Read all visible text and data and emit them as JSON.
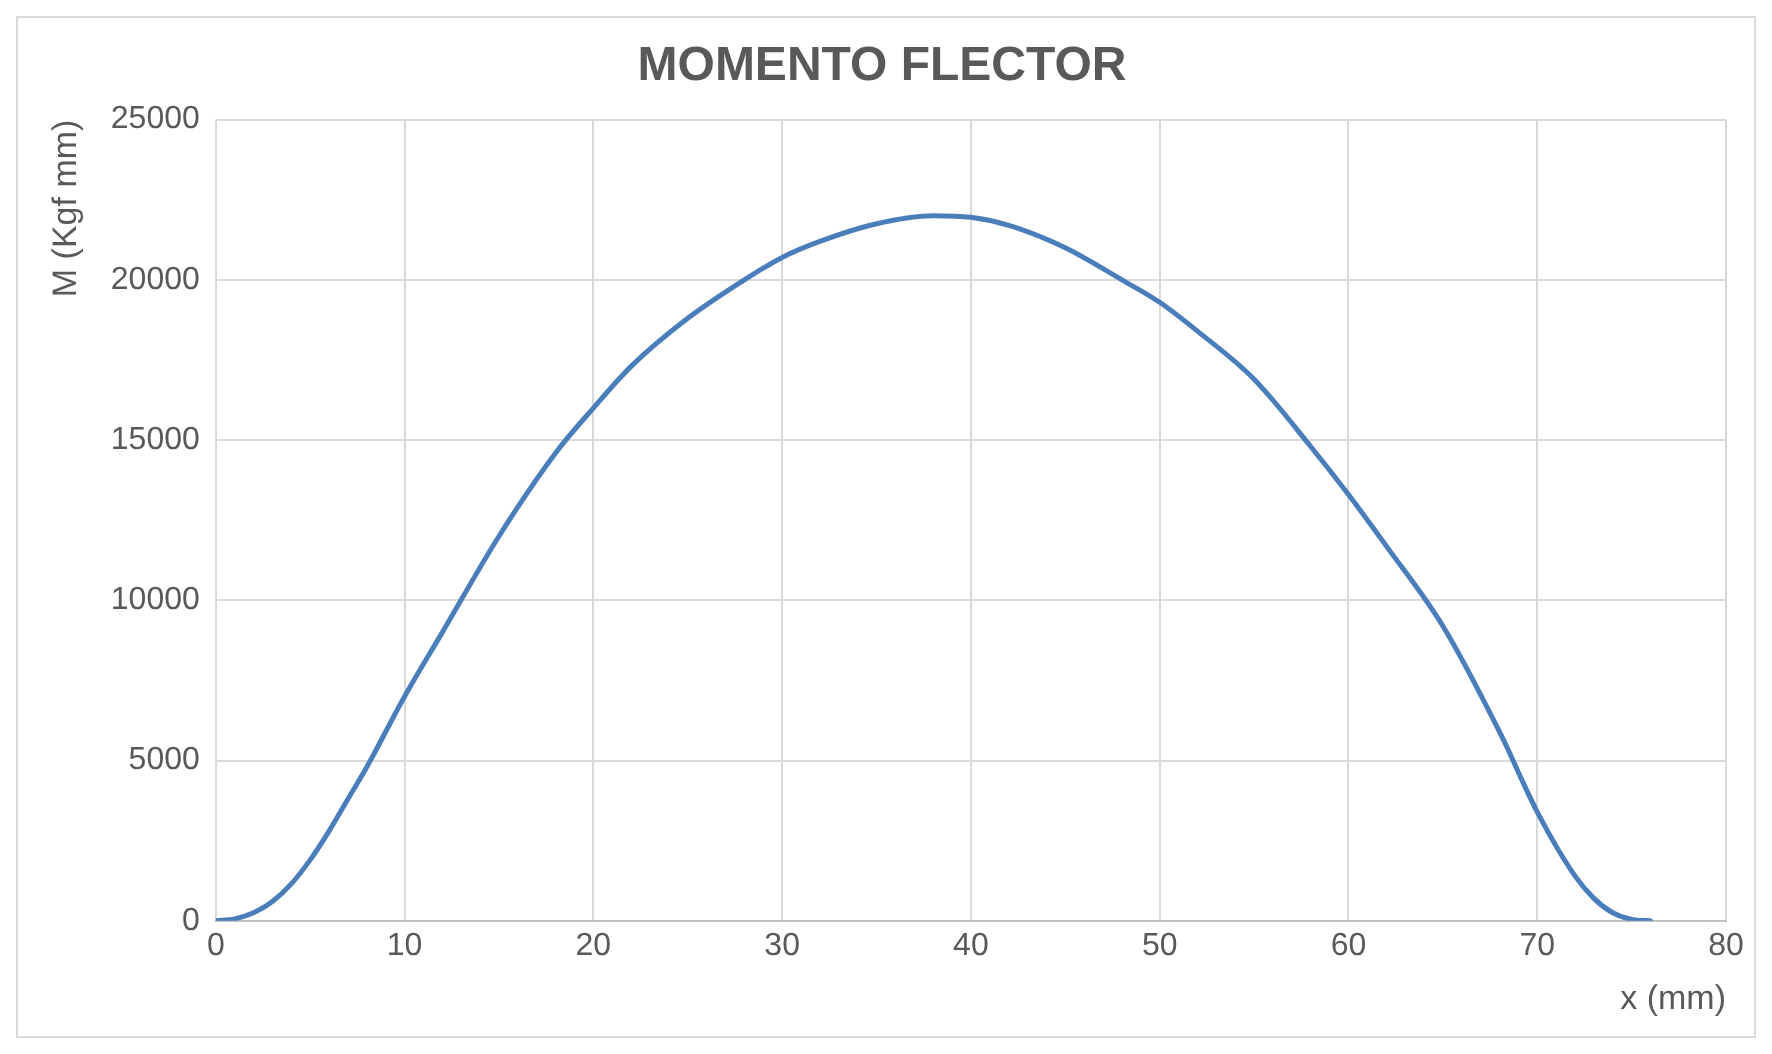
{
  "chart_data": {
    "type": "line",
    "title": "MOMENTO FLECTOR",
    "xlabel": "x (mm)",
    "ylabel": "M (Kgf mm)",
    "x": [
      0,
      1,
      2,
      3,
      4,
      5,
      6,
      7,
      8,
      10,
      12,
      15,
      18,
      20,
      22,
      25,
      28,
      30,
      32,
      35,
      38,
      40,
      42,
      45,
      48,
      50,
      52,
      55,
      58,
      60,
      62,
      65,
      68,
      70,
      72,
      73,
      74,
      75,
      76
    ],
    "series": [
      {
        "color": "#4a7ebb",
        "values": [
          0,
          60,
          250,
          600,
          1150,
          1900,
          2800,
          3800,
          4800,
          7000,
          9000,
          12000,
          14600,
          16000,
          17300,
          18800,
          20000,
          20700,
          21200,
          21750,
          22000,
          21950,
          21700,
          21000,
          20000,
          19300,
          18400,
          16900,
          14800,
          13300,
          11700,
          9200,
          5900,
          3400,
          1400,
          700,
          250,
          40,
          0
        ]
      }
    ],
    "xlim": [
      0,
      80
    ],
    "xticks": [
      0,
      10,
      20,
      30,
      40,
      50,
      60,
      70,
      80
    ],
    "ylim": [
      0,
      25000
    ],
    "yticks": [
      0,
      5000,
      10000,
      15000,
      20000,
      25000
    ],
    "grid": true,
    "marker": "none",
    "line_style": "solid"
  }
}
